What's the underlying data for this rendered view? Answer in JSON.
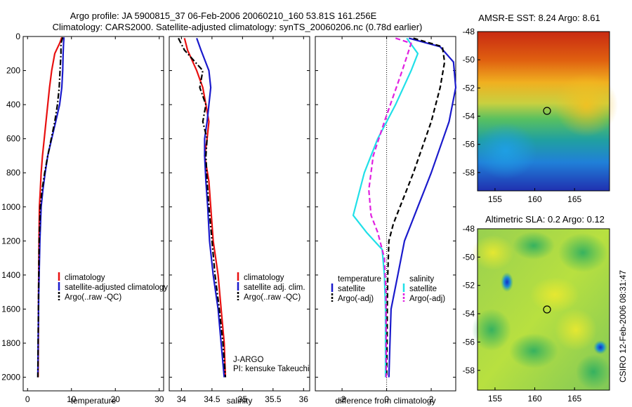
{
  "header": {
    "line1": "Argo profile: JA 5900815_37 06-Feb-2006 20060210_160 53.81S 161.256E",
    "line2": "Climatology: CARS2000. Satellite-adjusted climatology: synTS_20060206.nc (0.78d earlier)"
  },
  "side_label": "CSIRO 12-Feb-2006 08:31:47",
  "colors": {
    "red": "#e81010",
    "blue": "#1a1acc",
    "black": "#000000",
    "cyan": "#20e0e8",
    "magenta": "#e020e0"
  },
  "chart_data": [
    {
      "type": "line",
      "xlabel": "temperature",
      "xticks": [
        "0",
        "10",
        "20",
        "30"
      ],
      "yticks": [
        "0",
        "200",
        "400",
        "600",
        "800",
        "1000",
        "1200",
        "1400",
        "1600",
        "1800",
        "2000"
      ],
      "xlim": [
        -1,
        31
      ],
      "ylim": [
        2080,
        0
      ],
      "legend": {
        "placement": "bottom-right",
        "entries": [
          "climatology",
          "satellite-adjusted climatology",
          "Argo(..raw -QC)"
        ]
      },
      "series": [
        {
          "color": "red",
          "style": "solid",
          "x": [
            7.8,
            7.3,
            6.2,
            5.5,
            5.0,
            4.6,
            4.2,
            3.8,
            3.4,
            3.1,
            2.9,
            2.7,
            2.6,
            2.5,
            2.45,
            2.4
          ],
          "y": [
            5,
            40,
            100,
            200,
            300,
            400,
            500,
            600,
            700,
            800,
            900,
            1000,
            1200,
            1500,
            1800,
            2000
          ]
        },
        {
          "color": "blue",
          "style": "solid",
          "x": [
            8.3,
            8.2,
            8.1,
            8.0,
            7.8,
            7.3,
            6.4,
            5.5,
            4.6,
            4.0,
            3.5,
            3.1,
            2.8,
            2.55,
            2.4,
            2.35
          ],
          "y": [
            5,
            40,
            100,
            200,
            300,
            400,
            500,
            600,
            700,
            800,
            900,
            1000,
            1200,
            1500,
            1800,
            2000
          ]
        },
        {
          "color": "black",
          "style": "dashdot",
          "x": [
            8.0,
            7.6,
            7.6,
            7.4,
            7.2,
            6.8,
            6.2,
            5.4,
            4.6,
            3.9,
            3.3,
            2.9,
            2.65,
            2.5,
            2.4,
            2.35
          ],
          "y": [
            5,
            40,
            100,
            200,
            300,
            400,
            500,
            600,
            700,
            800,
            900,
            1000,
            1200,
            1500,
            1800,
            2000
          ]
        }
      ]
    },
    {
      "type": "line",
      "xlabel": "salinity",
      "xticks": [
        "34",
        "34.5",
        "35",
        "35.5",
        "36"
      ],
      "yticks": [],
      "xlim": [
        33.8,
        36.1
      ],
      "ylim": [
        2080,
        0
      ],
      "legend": {
        "placement": "bottom-right",
        "entries": [
          "climatology",
          "satellite adj. clim.",
          "Argo(..raw -QC)"
        ]
      },
      "annotation": [
        "J-ARGO",
        "PI: kensuke Takeuchi"
      ],
      "series": [
        {
          "color": "red",
          "style": "solid",
          "x": [
            34.05,
            34.1,
            34.25,
            34.35,
            34.4,
            34.45,
            34.42,
            34.38,
            34.45,
            34.48,
            34.52,
            34.6,
            34.65,
            34.7,
            34.72
          ],
          "y": [
            10,
            80,
            200,
            300,
            400,
            500,
            600,
            700,
            850,
            1000,
            1200,
            1400,
            1600,
            1800,
            2000
          ]
        },
        {
          "color": "blue",
          "style": "solid",
          "x": [
            34.25,
            34.32,
            34.45,
            34.48,
            34.45,
            34.42,
            34.38,
            34.38,
            34.4,
            34.43,
            34.46,
            34.52,
            34.6,
            34.65,
            34.7
          ],
          "y": [
            10,
            80,
            200,
            300,
            400,
            500,
            600,
            700,
            850,
            1000,
            1200,
            1400,
            1600,
            1800,
            2000
          ]
        },
        {
          "color": "black",
          "style": "dashdot",
          "x": [
            33.95,
            34.05,
            34.35,
            34.3,
            34.4,
            34.35,
            34.42,
            34.4,
            34.42,
            34.45,
            34.5,
            34.55,
            34.62,
            34.68,
            34.72
          ],
          "y": [
            10,
            80,
            200,
            300,
            400,
            500,
            600,
            700,
            850,
            1000,
            1200,
            1400,
            1600,
            1800,
            2000
          ]
        }
      ]
    },
    {
      "type": "line",
      "xlabel": "difference from climatology",
      "xticks": [
        "-2",
        "0",
        "2"
      ],
      "yticks": [],
      "xlim": [
        -3.2,
        3.1
      ],
      "ylim": [
        2080,
        0
      ],
      "zero_line": true,
      "legend": {
        "placement": "bottom",
        "entries": [
          "temperature",
          "satellite",
          "Argo(-adj)",
          "salinity",
          "satellite",
          "Argo(-adj)"
        ]
      },
      "series": [
        {
          "group": "temperature",
          "name": "satellite",
          "color": "blue",
          "style": "solid",
          "x": [
            1.0,
            2.4,
            3.0,
            3.1,
            2.8,
            2.4,
            2.0,
            1.7,
            1.4,
            1.1,
            0.8,
            0.5,
            0.2,
            0.15,
            0.1
          ],
          "y": [
            10,
            60,
            150,
            300,
            500,
            650,
            800,
            900,
            1000,
            1100,
            1200,
            1400,
            1600,
            1800,
            2000
          ]
        },
        {
          "group": "temperature",
          "name": "Argo(-adj)",
          "color": "black",
          "style": "dashed",
          "x": [
            1.2,
            2.5,
            2.6,
            2.4,
            2.0,
            1.6,
            1.2,
            0.9,
            0.6,
            0.3,
            0.1,
            0.05,
            0.03,
            0.02,
            0.0
          ],
          "y": [
            10,
            60,
            150,
            300,
            500,
            650,
            800,
            900,
            1000,
            1100,
            1200,
            1400,
            1600,
            1800,
            2000
          ]
        },
        {
          "group": "salinity",
          "name": "satellite",
          "color": "cyan",
          "style": "solid",
          "x": [
            0.9,
            1.4,
            1.1,
            0.4,
            -0.4,
            -1.0,
            -1.3,
            -1.5,
            -0.9,
            -0.2,
            -0.1,
            -0.05,
            -0.05,
            -0.05
          ],
          "y": [
            10,
            100,
            200,
            400,
            600,
            800,
            950,
            1050,
            1150,
            1250,
            1400,
            1600,
            1800,
            2000
          ]
        },
        {
          "group": "salinity",
          "name": "Argo(-adj)",
          "color": "magenta",
          "style": "dashed",
          "x": [
            0.4,
            1.1,
            0.7,
            -0.1,
            -0.6,
            -0.8,
            -0.7,
            -0.4,
            -0.1,
            -0.03,
            -0.02,
            -0.02
          ],
          "y": [
            10,
            40,
            200,
            500,
            700,
            900,
            1050,
            1150,
            1300,
            1500,
            1800,
            2000
          ]
        }
      ]
    }
  ],
  "maps": [
    {
      "title": "AMSR-E SST: 8.24 Argo: 8.61",
      "xticks": [
        "155",
        "160",
        "165"
      ],
      "yticks": [
        "-48",
        "-50",
        "-52",
        "-54",
        "-56",
        "-58"
      ]
    },
    {
      "title": "Altimetric SLA: 0.2 Argo: 0.12",
      "xticks": [
        "155",
        "160",
        "165"
      ],
      "yticks": [
        "-48",
        "-50",
        "-52",
        "-54",
        "-56",
        "-58"
      ]
    }
  ]
}
